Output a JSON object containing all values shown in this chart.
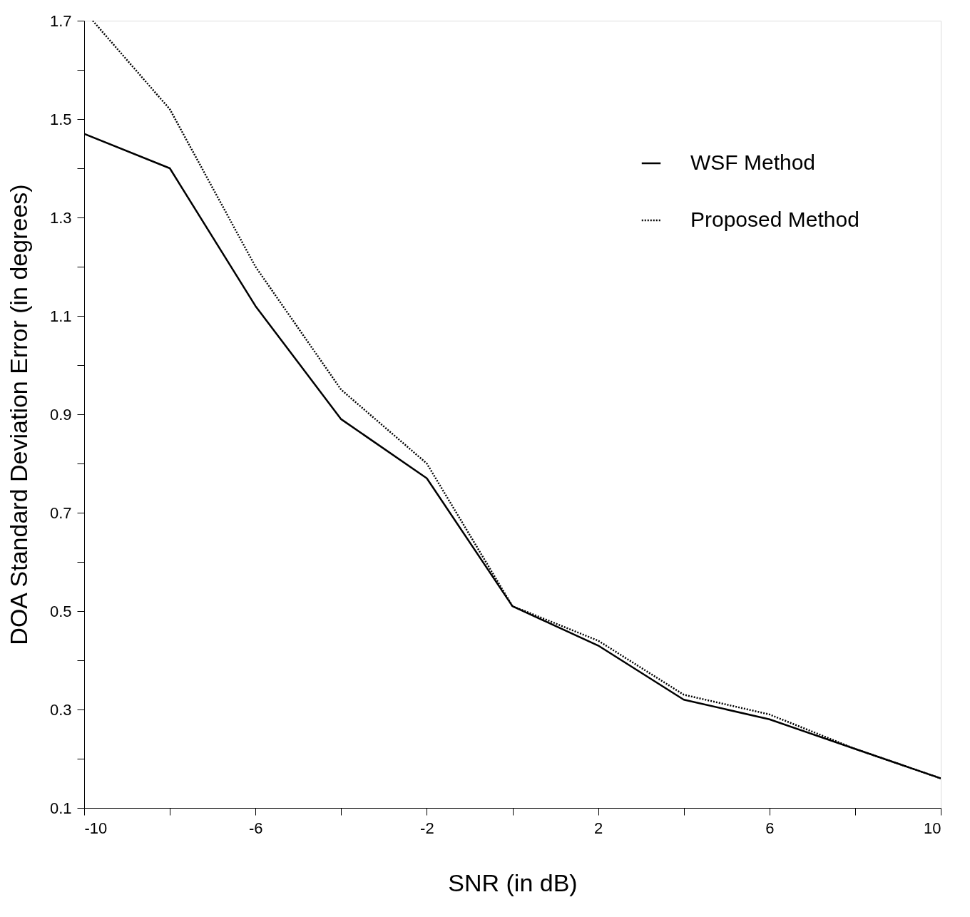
{
  "chart_data": {
    "type": "line",
    "xlabel": "SNR (in dB)",
    "ylabel": "DOA Standard Deviation Error  (in degrees)",
    "series": [
      {
        "name": "WSF Method",
        "color": "#000000",
        "line_style": "solid",
        "x": [
          -10,
          -8,
          -6,
          -4,
          -2,
          0,
          2,
          4,
          6,
          8,
          10
        ],
        "values": [
          1.47,
          1.4,
          1.12,
          0.89,
          0.77,
          0.51,
          0.43,
          0.32,
          0.28,
          0.22,
          0.16
        ]
      },
      {
        "name": "Proposed Method",
        "color": "#000000",
        "line_style": "dotted",
        "x": [
          -9.8,
          -8,
          -6,
          -4,
          -2,
          0,
          2,
          4,
          6,
          8,
          10
        ],
        "values": [
          1.7,
          1.52,
          1.2,
          0.95,
          0.8,
          0.51,
          0.44,
          0.33,
          0.29,
          0.22,
          0.16
        ]
      }
    ],
    "xlim": [
      -10,
      10
    ],
    "ylim": [
      0.1,
      1.7
    ],
    "xticks": [
      -10,
      {
        "value": -8,
        "label": null
      },
      -6,
      {
        "value": -4,
        "label": null
      },
      -2,
      {
        "value": 0,
        "label": null
      },
      2,
      {
        "value": 4,
        "label": null
      },
      6,
      {
        "value": 8,
        "label": null
      },
      10
    ],
    "yticks": [
      0.1,
      {
        "value": 0.2,
        "label": null
      },
      0.3,
      {
        "value": 0.4,
        "label": null
      },
      0.5,
      {
        "value": 0.6,
        "label": null
      },
      0.7,
      {
        "value": 0.8,
        "label": null
      },
      0.9,
      {
        "value": 1.0,
        "label": null
      },
      1.1,
      {
        "value": 1.2,
        "label": null
      },
      1.3,
      {
        "value": 1.4,
        "label": null
      },
      1.5,
      {
        "value": 1.6,
        "label": null
      },
      1.7
    ],
    "grid": false,
    "legend": "top right",
    "marker": "none"
  }
}
